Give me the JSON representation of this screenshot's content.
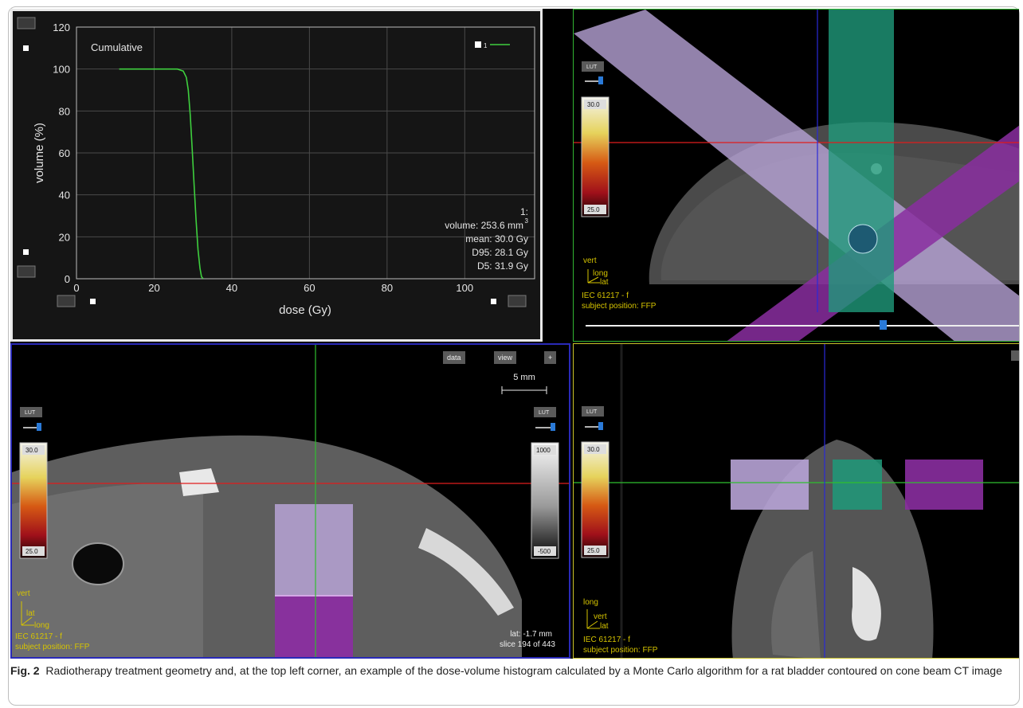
{
  "figure": {
    "label": "Fig. 2",
    "caption": "Radiotherapy treatment geometry and, at the top left corner, an example of the dose-volume histogram calculated by a Monte Carlo algorithm for a rat bladder contoured on cone beam CT image"
  },
  "dvh": {
    "mode_label": "Cumulative",
    "legend_index": "1",
    "series_color": "#3ecf3e",
    "stats": {
      "header": "1:",
      "volume": "volume: 253.6 mm",
      "volume_unit_sup": "3",
      "mean": "mean: 30.0 Gy",
      "d95": "D95: 28.1 Gy",
      "d5": "D5: 31.9 Gy"
    }
  },
  "chart_data": {
    "type": "line",
    "title": "",
    "xlabel": "dose (Gy)",
    "ylabel": "volume (%)",
    "xlim": [
      0,
      118
    ],
    "ylim": [
      0,
      120
    ],
    "xticks": [
      0,
      20,
      40,
      60,
      80,
      100
    ],
    "yticks": [
      0,
      20,
      40,
      60,
      80,
      100,
      120
    ],
    "grid": true,
    "legend_position": "top-right",
    "series": [
      {
        "name": "1",
        "color": "#3ecf3e",
        "x": [
          11,
          20,
          26,
          27.5,
          28.3,
          28.8,
          29.3,
          29.8,
          30.3,
          30.8,
          31.3,
          31.8,
          32.2,
          32.6
        ],
        "y": [
          100,
          100,
          100,
          99,
          96,
          90,
          78,
          62,
          45,
          28,
          14,
          5,
          1,
          0
        ]
      }
    ]
  },
  "views": {
    "top_right": {
      "lut_label": "LUT",
      "lut_max": "30.0",
      "lut_min": "25.0",
      "axes": {
        "up": "vert",
        "diag": "long",
        "right": "lat"
      },
      "standard": "IEC 61217 - f",
      "position": "subject position: FFP"
    },
    "bottom_left": {
      "lut_label": "LUT",
      "lut_max": "30.0",
      "lut_min": "25.0",
      "ct_lut_label": "LUT",
      "ct_lut_max": "1000",
      "ct_lut_min": "-500",
      "buttons": {
        "data": "data",
        "view": "view",
        "plus": "+"
      },
      "scale_bar": "5 mm",
      "axes": {
        "up": "vert",
        "diag": "lat",
        "right": "long"
      },
      "standard": "IEC 61217 - f",
      "position": "subject position: FFP",
      "coord": "lat: -1.7 mm",
      "slice": "slice 194 of 443"
    },
    "bottom_right": {
      "lut_label": "LUT",
      "lut_max": "30.0",
      "lut_min": "25.0",
      "axes": {
        "up": "long",
        "diag": "vert",
        "right": "lat"
      },
      "standard": "IEC 61217 - f",
      "position": "subject position: FFP"
    }
  },
  "colors": {
    "beam_lilac": "#b7a3d6",
    "beam_green": "#1f9a7a",
    "beam_magenta": "#8a2ea0",
    "crosshair_red": "#e01c1c",
    "crosshair_green": "#2fbf2f",
    "crosshair_blue": "#2a2ad8",
    "annotation_yellow": "#d6c400"
  }
}
